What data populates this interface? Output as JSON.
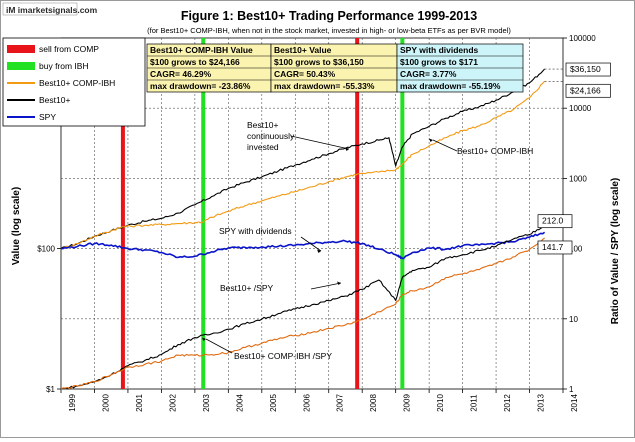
{
  "watermark": "iM imarketsignals.com",
  "title": "Figure 1:  Best10+  Trading Performance  1999-2013",
  "subtitle": "(for Best10+ COMP-IBH, when not in the stock market, invested in high- or low-beta ETFs as per BVR model)",
  "legend": [
    {
      "label": "sell from COMP",
      "color": "#e8141a",
      "kind": "bar"
    },
    {
      "label": "buy from IBH",
      "color": "#22e022",
      "kind": "bar"
    },
    {
      "label": "Best10+ COMP-IBH",
      "color": "#f29a12",
      "kind": "line"
    },
    {
      "label": "Best10+",
      "color": "#000000",
      "kind": "line"
    },
    {
      "label": "SPY",
      "color": "#0a14c8",
      "kind": "line"
    }
  ],
  "stats_table": [
    {
      "header": "Best10+ COMP-IBH Value",
      "bg": "#fbf3b0",
      "rows": [
        "$100 grows to $24,166",
        "CAGR= 46.29%",
        "max drawdown= -23.86%"
      ]
    },
    {
      "header": "Best10+ Value",
      "bg": "#fbf3b0",
      "rows": [
        "$100 grows to $36,150",
        "CAGR= 50.43%",
        "max drawdown= -55.33%"
      ]
    },
    {
      "header": "SPY with dividends",
      "bg": "#cdf4f8",
      "rows": [
        "$100 grows to $171",
        "CAGR=  3.77%",
        "max drawdown= -55.19%"
      ]
    }
  ],
  "end_labels": {
    "best10": "$36,150",
    "comp": "$24,166",
    "ratio_best10": "212.0",
    "ratio_comp": "141.7"
  },
  "annotations": {
    "best10": "Best10+ continuously invested",
    "comp": "Best10+ COMP-IBH",
    "spy": "SPY with dividends",
    "ratio_best10": "Best10+ /SPY",
    "ratio_comp": "Best10+ COMP-IBH /SPY"
  },
  "chart_data": {
    "type": "line",
    "x_range": [
      1999,
      2014
    ],
    "xticks": [
      "1999",
      "2000",
      "2001",
      "2002",
      "2003",
      "2004",
      "2005",
      "2006",
      "2007",
      "2008",
      "2009",
      "2010",
      "2011",
      "2012",
      "2013",
      "2014"
    ],
    "left_axis": {
      "label": "Value   (log scale)",
      "scale": "log",
      "range": [
        1,
        100000
      ],
      "ticks": [
        "$1",
        "$100"
      ]
    },
    "right_axis": {
      "label": "Ratio of Value / SPY (log scale)",
      "scale": "log",
      "range": [
        1,
        100000
      ],
      "ticks": [
        "1",
        "10",
        "100",
        "1000",
        "10000",
        "100000"
      ]
    },
    "markers": [
      {
        "year": 2000.85,
        "type": "sell from COMP"
      },
      {
        "year": 2003.25,
        "type": "buy from IBH"
      },
      {
        "year": 2007.85,
        "type": "sell from COMP"
      },
      {
        "year": 2009.2,
        "type": "buy from IBH"
      }
    ],
    "series": [
      {
        "name": "Best10+",
        "color": "#000000",
        "x": [
          1999,
          1999.5,
          2000,
          2000.5,
          2001,
          2001.5,
          2002,
          2002.5,
          2003,
          2003.5,
          2004,
          2004.5,
          2005,
          2005.5,
          2006,
          2006.5,
          2007,
          2007.5,
          2008,
          2008.5,
          2008.8,
          2009,
          2009.2,
          2009.5,
          2010,
          2010.5,
          2011,
          2011.5,
          2012,
          2012.5,
          2013,
          2013.45
        ],
        "y": [
          100,
          118,
          150,
          180,
          215,
          245,
          270,
          320,
          420,
          550,
          720,
          880,
          1050,
          1280,
          1550,
          1880,
          2250,
          2700,
          3100,
          3500,
          3800,
          1500,
          2800,
          4300,
          5500,
          7200,
          9000,
          10500,
          13000,
          17000,
          23000,
          36150
        ]
      },
      {
        "name": "Best10+ COMP-IBH",
        "color": "#f29a12",
        "x": [
          1999,
          1999.5,
          2000,
          2000.5,
          2000.85,
          2001.5,
          2002,
          2002.5,
          2003,
          2003.25,
          2003.5,
          2004,
          2004.5,
          2005,
          2005.5,
          2006,
          2006.5,
          2007,
          2007.5,
          2007.85,
          2008.5,
          2009,
          2009.2,
          2009.5,
          2010,
          2010.5,
          2011,
          2011.5,
          2012,
          2012.5,
          2013,
          2013.45
        ],
        "y": [
          100,
          118,
          150,
          180,
          205,
          215,
          220,
          228,
          235,
          240,
          280,
          340,
          410,
          480,
          560,
          650,
          760,
          900,
          1050,
          1150,
          1230,
          1330,
          1600,
          2200,
          2900,
          3800,
          4800,
          5600,
          7300,
          9500,
          14000,
          24166
        ]
      },
      {
        "name": "SPY",
        "color": "#0a14c8",
        "x": [
          1999,
          1999.5,
          2000,
          2000.5,
          2001,
          2001.5,
          2002,
          2002.5,
          2003,
          2003.5,
          2004,
          2004.5,
          2005,
          2005.5,
          2006,
          2006.5,
          2007,
          2007.5,
          2008,
          2008.5,
          2009,
          2009.2,
          2009.5,
          2010,
          2010.5,
          2011,
          2011.5,
          2012,
          2012.5,
          2013,
          2013.45
        ],
        "y": [
          100,
          108,
          118,
          112,
          100,
          96,
          88,
          75,
          78,
          90,
          102,
          104,
          106,
          108,
          112,
          118,
          124,
          128,
          118,
          98,
          82,
          72,
          88,
          102,
          98,
          110,
          112,
          120,
          125,
          145,
          171
        ]
      },
      {
        "name": "Best10+ /SPY",
        "color": "#000000",
        "x": [
          1999,
          1999.5,
          2000,
          2000.5,
          2001,
          2001.5,
          2002,
          2002.5,
          2003,
          2003.5,
          2004,
          2004.5,
          2005,
          2005.5,
          2006,
          2006.5,
          2007,
          2007.5,
          2008,
          2008.5,
          2009,
          2009.2,
          2009.5,
          2010,
          2010.5,
          2011,
          2011.5,
          2012,
          2012.5,
          2013,
          2013.45
        ],
        "y": [
          1,
          1.1,
          1.27,
          1.6,
          2.15,
          2.55,
          3.1,
          4.3,
          5.4,
          6.1,
          7.1,
          8.5,
          9.9,
          11.9,
          13.8,
          15.9,
          18.1,
          21.1,
          26.3,
          35.7,
          18.3,
          38.9,
          48.9,
          53.9,
          73.5,
          81.8,
          93.8,
          108,
          136,
          159,
          212
        ]
      },
      {
        "name": "Best10+ COMP-IBH /SPY",
        "color": "#e06b10",
        "x": [
          1999,
          1999.5,
          2000,
          2000.5,
          2001,
          2001.5,
          2002,
          2002.5,
          2003,
          2003.5,
          2004,
          2004.5,
          2005,
          2005.5,
          2006,
          2006.5,
          2007,
          2007.5,
          2008,
          2008.5,
          2009,
          2009.2,
          2009.5,
          2010,
          2010.5,
          2011,
          2011.5,
          2012,
          2012.5,
          2013,
          2013.45
        ],
        "y": [
          1,
          1.1,
          1.27,
          1.6,
          2.05,
          2.24,
          2.5,
          3.04,
          3.0,
          3.1,
          3.3,
          3.9,
          4.5,
          5.2,
          5.8,
          6.4,
          7.3,
          8.2,
          9.7,
          12.6,
          16.2,
          22.2,
          25,
          28.4,
          38.8,
          43.6,
          50,
          60.8,
          76,
          97,
          141.7
        ]
      }
    ]
  }
}
